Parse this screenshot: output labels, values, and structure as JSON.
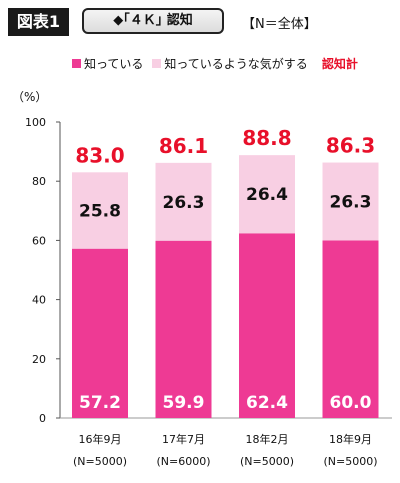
{
  "header": {
    "figure_label": "図表1",
    "topic": "◆｢４Ｋ｣ 認知",
    "base": "【N＝全体】"
  },
  "legend": {
    "known": "知っている",
    "vaguely": "知っているような気がする",
    "total": "認知計"
  },
  "unit_label": "（%）",
  "colors": {
    "known": "#ee3a94",
    "vaguely": "#f8cfe3",
    "total_text": "#e8102a"
  },
  "chart_data": {
    "type": "bar",
    "stacked": true,
    "categories": [
      "16年9月",
      "17年7月",
      "18年2月",
      "18年9月"
    ],
    "category_notes": [
      "(N=5000)",
      "(N=6000)",
      "(N=5000)",
      "(N=5000)"
    ],
    "series": [
      {
        "name": "知っている",
        "values": [
          57.2,
          59.9,
          62.4,
          60.0
        ]
      },
      {
        "name": "知っているような気がする",
        "values": [
          25.8,
          26.3,
          26.4,
          26.3
        ]
      }
    ],
    "totals_name": "認知計",
    "totals": [
      83.0,
      86.1,
      88.8,
      86.3
    ],
    "ylim": [
      0,
      100
    ],
    "yticks": [
      0,
      20,
      40,
      60,
      80,
      100
    ],
    "grid": false,
    "legend_position": "top"
  }
}
